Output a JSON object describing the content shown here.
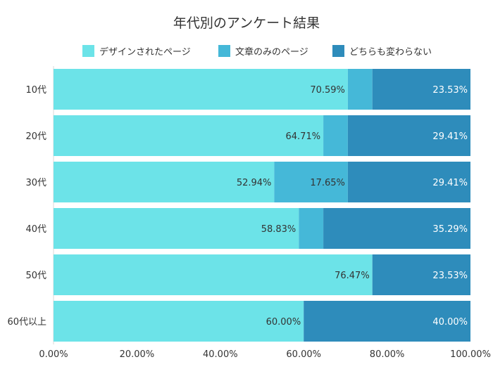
{
  "chart_data": {
    "type": "bar",
    "orientation": "horizontal",
    "stacked": true,
    "title": "年代別のアンケート結果",
    "categories": [
      "10代",
      "20代",
      "30代",
      "40代",
      "50代",
      "60代以上"
    ],
    "series": [
      {
        "name": "デザインされたページ",
        "color": "#6ce3e8",
        "values": [
          70.59,
          64.71,
          52.94,
          58.83,
          76.47,
          60.0
        ],
        "labels": [
          "70.59%",
          "64.71%",
          "52.94%",
          "58.83%",
          "76.47%",
          "60.00%"
        ]
      },
      {
        "name": "文章のみのページ",
        "color": "#45b8d8",
        "values": [
          5.88,
          5.88,
          17.65,
          5.88,
          0,
          0
        ],
        "labels": [
          "",
          "",
          "17.65%",
          "",
          "",
          ""
        ]
      },
      {
        "name": "どちらも変わらない",
        "color": "#2e8cbb",
        "values": [
          23.53,
          29.41,
          29.41,
          35.29,
          23.53,
          40.0
        ],
        "labels": [
          "23.53%",
          "29.41%",
          "29.41%",
          "35.29%",
          "23.53%",
          "40.00%"
        ]
      }
    ],
    "xlim": [
      0,
      100
    ],
    "x_ticks": [
      "0.00%",
      "20.00%",
      "40.00%",
      "60.00%",
      "80.00%",
      "100.00%"
    ],
    "legend_position": "top"
  }
}
